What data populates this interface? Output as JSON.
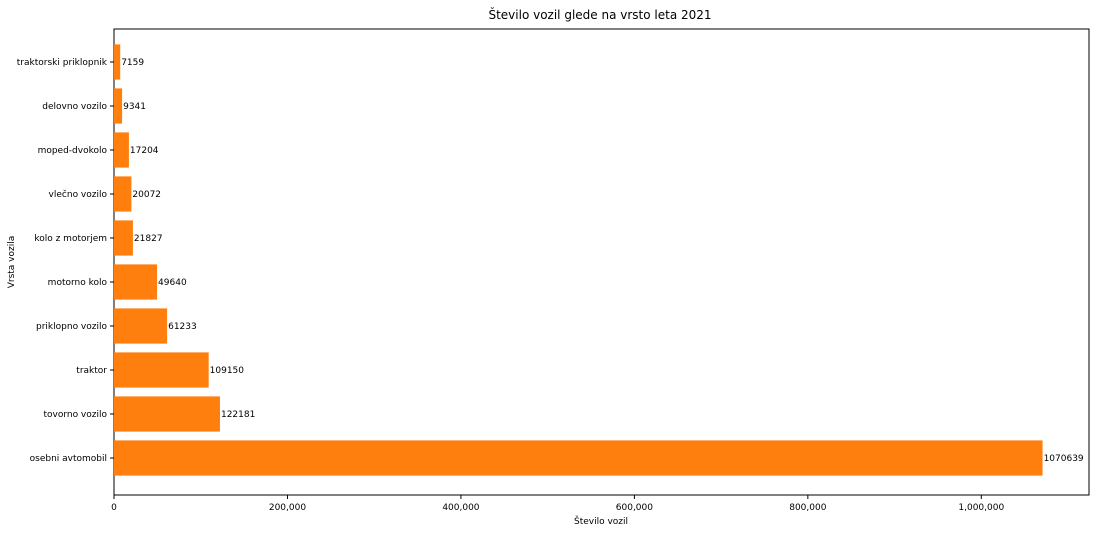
{
  "chart_data": {
    "type": "bar",
    "orientation": "horizontal",
    "title": "Število vozil glede na vrsto leta 2021",
    "xlabel": "Število vozil",
    "ylabel": "Vrsta vozila",
    "categories": [
      "osebni avtomobil",
      "tovorno vozilo",
      "traktor",
      "priklopno vozilo",
      "motorno kolo",
      "kolo z motorjem",
      "vlečno vozilo",
      "moped-dvokolo",
      "delovno vozilo",
      "traktorski priklopnik"
    ],
    "values": [
      1070639,
      122181,
      109150,
      61233,
      49640,
      21827,
      20072,
      17204,
      9341,
      7159
    ],
    "xlim": [
      0,
      1124171
    ],
    "xticks": [
      0,
      200000,
      400000,
      600000,
      800000,
      1000000
    ],
    "xtick_labels": [
      "0",
      "200,000",
      "400,000",
      "600,000",
      "800,000",
      "1,000,000"
    ],
    "bar_color": "#ff7f0e",
    "grid": false,
    "legend": "none"
  }
}
